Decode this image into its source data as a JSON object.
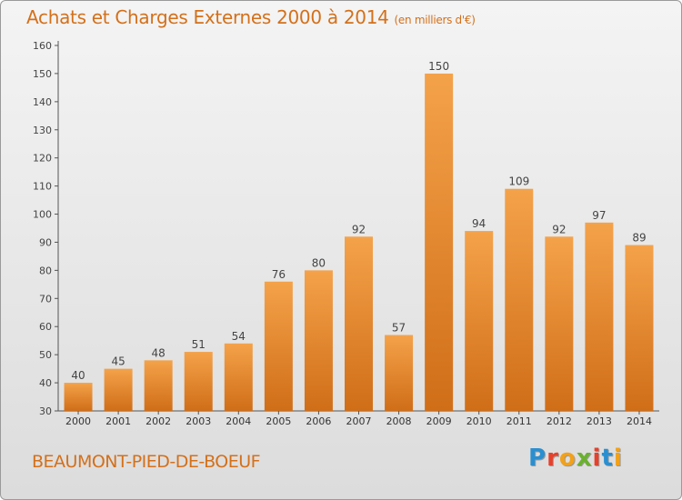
{
  "chart_data": {
    "type": "bar",
    "title": "Achats et Charges Externes 2000 à 2014",
    "subtitle": "(en milliers d'€)",
    "categories": [
      "2000",
      "2001",
      "2002",
      "2003",
      "2004",
      "2005",
      "2006",
      "2007",
      "2008",
      "2009",
      "2010",
      "2011",
      "2012",
      "2013",
      "2014"
    ],
    "values": [
      40,
      45,
      48,
      51,
      54,
      76,
      80,
      92,
      57,
      150,
      94,
      109,
      92,
      97,
      89
    ],
    "ylim": [
      30,
      160
    ],
    "yticks": [
      30,
      40,
      50,
      60,
      70,
      80,
      90,
      100,
      110,
      120,
      130,
      140,
      150,
      160
    ],
    "xlabel": "",
    "ylabel": "",
    "grid": false,
    "bar_color_top": "#f4a24a",
    "bar_color_bottom": "#d06e18",
    "label_color": "#444444"
  },
  "place_name": "BEAUMONT-PIED-DE-BOEUF",
  "logo": {
    "letters": [
      "P",
      "r",
      "o",
      "x",
      "i",
      "t",
      "i"
    ],
    "colors": [
      "#2a8fd0",
      "#e8402a",
      "#f2a11a",
      "#6ab22e",
      "#e8402a",
      "#2a8fd0",
      "#f2a11a"
    ]
  },
  "accent_color": "#d4701a"
}
